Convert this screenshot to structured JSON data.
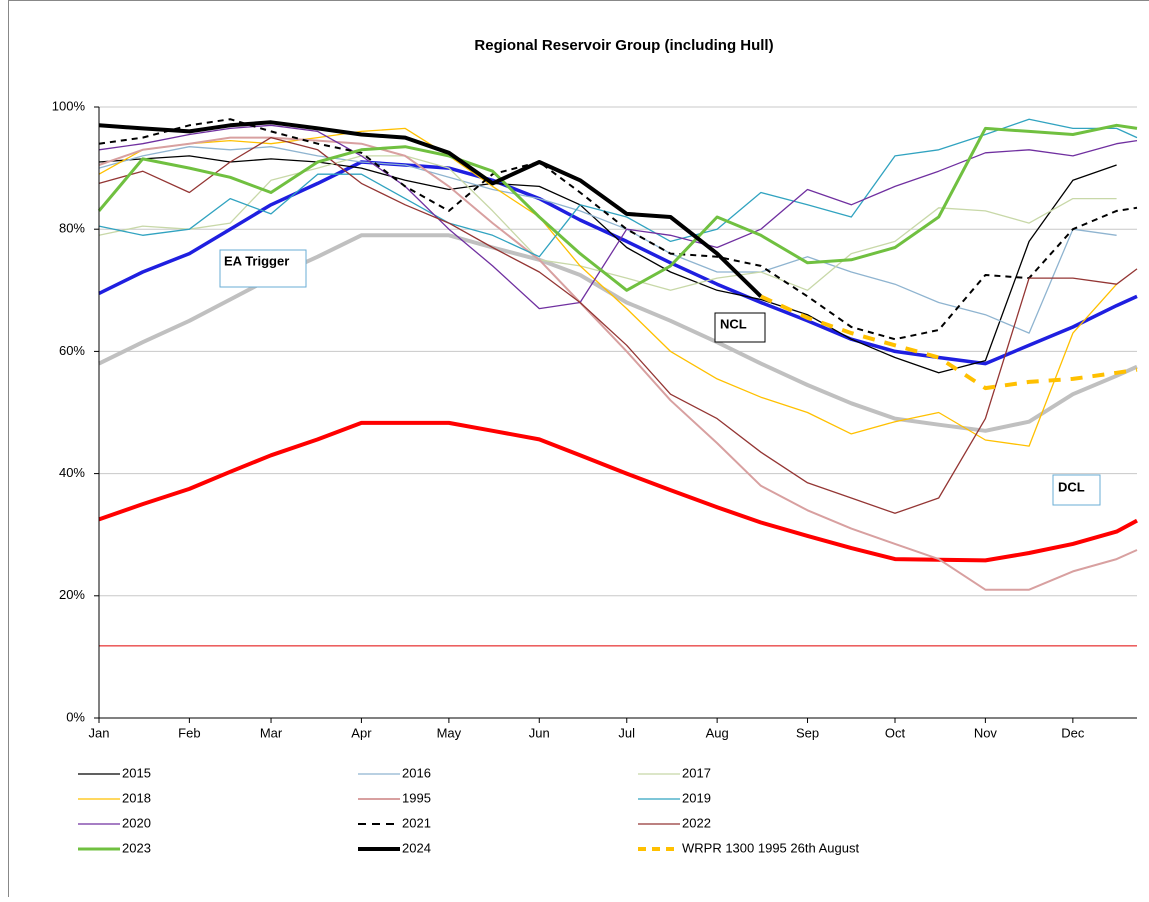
{
  "chart_data": {
    "type": "line",
    "title": "Regional Reservoir Group (including Hull)",
    "x": [
      0,
      15,
      31,
      45,
      59,
      75,
      90,
      105,
      120,
      135,
      151,
      165,
      181,
      196,
      212,
      227,
      243,
      258,
      273,
      288,
      304,
      319,
      334,
      349,
      356
    ],
    "xlim": [
      0,
      356
    ],
    "xticks": [
      {
        "value": 0,
        "label": "Jan"
      },
      {
        "value": 31,
        "label": "Feb"
      },
      {
        "value": 59,
        "label": "Mar"
      },
      {
        "value": 90,
        "label": "Apr"
      },
      {
        "value": 120,
        "label": "May"
      },
      {
        "value": 151,
        "label": "Jun"
      },
      {
        "value": 181,
        "label": "Jul"
      },
      {
        "value": 212,
        "label": "Aug"
      },
      {
        "value": 243,
        "label": "Sep"
      },
      {
        "value": 273,
        "label": "Oct"
      },
      {
        "value": 304,
        "label": "Nov"
      },
      {
        "value": 334,
        "label": "Dec"
      }
    ],
    "ylim": [
      0,
      100
    ],
    "yticks": [
      {
        "value": 0,
        "label": "0%"
      },
      {
        "value": 20,
        "label": "20%"
      },
      {
        "value": 40,
        "label": "40%"
      },
      {
        "value": 60,
        "label": "60%"
      },
      {
        "value": 80,
        "label": "80%"
      },
      {
        "value": 100,
        "label": "100%"
      }
    ],
    "grid": true,
    "reference_lines": [
      {
        "color": "#1f1fe0",
        "width": 3.5,
        "values": [
          69.5,
          73,
          76,
          80,
          84,
          87.5,
          91,
          90.5,
          90,
          88,
          85,
          81.5,
          78,
          74.5,
          71,
          68,
          65,
          62,
          60,
          59,
          58,
          61,
          64,
          67.5,
          69
        ]
      },
      {
        "color": "#c0c0c0",
        "width": 4,
        "values": [
          58,
          61.5,
          65,
          68.5,
          72,
          75.5,
          79,
          79,
          79,
          77,
          75,
          72.5,
          68,
          65,
          61.5,
          58,
          54.5,
          51.5,
          49,
          48,
          47,
          48.5,
          53,
          56,
          57.5
        ]
      },
      {
        "color": "#ff0000",
        "width": 4,
        "values": [
          32.5,
          35,
          37.5,
          40.3,
          43,
          45.6,
          48.3,
          48.3,
          48.3,
          47,
          45.6,
          43,
          40,
          37.3,
          34.5,
          32,
          29.8,
          27.8,
          26,
          25.9,
          25.8,
          27,
          28.5,
          30.5,
          32.3
        ]
      }
    ],
    "threshold": {
      "value": 11.8,
      "color": "#e00000"
    },
    "annotations": [
      "EA Trigger",
      "NCL",
      "DCL"
    ],
    "series": [
      {
        "name": "2015",
        "color": "#000000",
        "width": 1.3,
        "dash": false,
        "values": [
          91,
          91.5,
          92,
          91,
          91.5,
          91,
          90,
          88,
          86.5,
          87.5,
          87,
          84,
          77,
          73,
          70,
          68.5,
          66,
          62,
          59,
          56.5,
          58.5,
          78,
          88,
          90.5,
          null
        ]
      },
      {
        "name": "2016",
        "color": "#8fb4d0",
        "width": 1.3,
        "dash": false,
        "values": [
          90,
          92,
          93.5,
          93,
          93.5,
          92,
          91,
          90.5,
          88.5,
          86.5,
          85,
          83,
          80,
          76,
          73,
          73,
          75.5,
          73,
          71,
          68,
          66,
          63,
          80,
          79,
          null
        ]
      },
      {
        "name": "2017",
        "color": "#c8d8a8",
        "width": 1.3,
        "dash": false,
        "values": [
          79,
          80.5,
          80,
          81,
          88,
          90,
          92,
          92,
          90,
          83,
          75,
          74,
          72,
          70,
          72,
          73,
          70,
          76,
          78,
          83.5,
          83,
          81,
          85,
          85,
          null
        ]
      },
      {
        "name": "2018",
        "color": "#ffc000",
        "width": 1.3,
        "dash": false,
        "values": [
          89,
          93,
          94,
          94.5,
          94,
          95,
          96,
          96.5,
          92,
          87,
          82,
          74,
          67,
          60,
          55.5,
          52.5,
          50,
          46.5,
          48.5,
          50,
          45.5,
          44.5,
          63,
          71,
          null
        ]
      },
      {
        "name": "1995",
        "color": "#d8a0a0",
        "width": 2,
        "dash": false,
        "values": [
          90.5,
          93,
          94,
          95,
          95,
          94.5,
          94,
          92,
          87,
          81,
          75,
          68,
          60,
          52,
          45,
          38,
          34,
          31,
          28.5,
          26,
          21,
          21,
          24,
          26,
          27.5
        ]
      },
      {
        "name": "2019",
        "color": "#31a3c0",
        "width": 1.3,
        "dash": false,
        "values": [
          80.5,
          79,
          80,
          85,
          82.5,
          89,
          89,
          85,
          81,
          79,
          75.5,
          84,
          82,
          78,
          80,
          86,
          84,
          82,
          92,
          93,
          95.5,
          98,
          96.5,
          96.5,
          95
        ]
      },
      {
        "name": "2020",
        "color": "#7030a0",
        "width": 1.3,
        "dash": false,
        "values": [
          93,
          94,
          95.5,
          96.5,
          97,
          96,
          92,
          87,
          80,
          74,
          67,
          68,
          80,
          79,
          77,
          80,
          86.5,
          84,
          87,
          89.5,
          92.5,
          93,
          92,
          94,
          94.5
        ]
      },
      {
        "name": "2021",
        "color": "#000000",
        "width": 2,
        "dash": true,
        "values": [
          94,
          95,
          97,
          98,
          96,
          94,
          92.5,
          87,
          83,
          89,
          91,
          86,
          80,
          76,
          75.5,
          74,
          69,
          64,
          62,
          63.5,
          72.5,
          72,
          80,
          83,
          83.5
        ]
      },
      {
        "name": "2022",
        "color": "#943634",
        "width": 1.3,
        "dash": false,
        "values": [
          87.5,
          89.5,
          86,
          91,
          95,
          93,
          87.5,
          84,
          81,
          77,
          73,
          68,
          61,
          53,
          49,
          43.5,
          38.5,
          36,
          33.5,
          36,
          49,
          72,
          72,
          71,
          73.5
        ]
      },
      {
        "name": "2023",
        "color": "#70c040",
        "width": 3,
        "dash": false,
        "values": [
          83,
          91.5,
          90,
          88.5,
          86,
          91,
          93,
          93.5,
          92,
          89.5,
          82,
          76,
          70,
          74,
          82,
          79,
          74.5,
          75,
          77,
          82,
          96.5,
          96,
          95.5,
          97,
          96.5
        ]
      },
      {
        "name": "2024",
        "color": "#000000",
        "width": 4,
        "dash": false,
        "values": [
          97,
          96.5,
          96,
          97,
          97.5,
          96.5,
          95.5,
          95,
          92.5,
          87.5,
          91,
          88,
          82.5,
          82,
          76,
          69,
          null,
          null,
          null,
          null,
          null,
          null,
          null,
          null,
          null
        ]
      },
      {
        "name": "WRPR 1300 1995 26th August",
        "color": "#ffc000",
        "width": 4,
        "dash": true,
        "values": [
          null,
          null,
          null,
          null,
          null,
          null,
          null,
          null,
          null,
          null,
          null,
          null,
          null,
          null,
          null,
          69,
          65.5,
          63,
          61,
          59,
          54,
          55,
          55.5,
          56.5,
          57
        ]
      }
    ]
  }
}
